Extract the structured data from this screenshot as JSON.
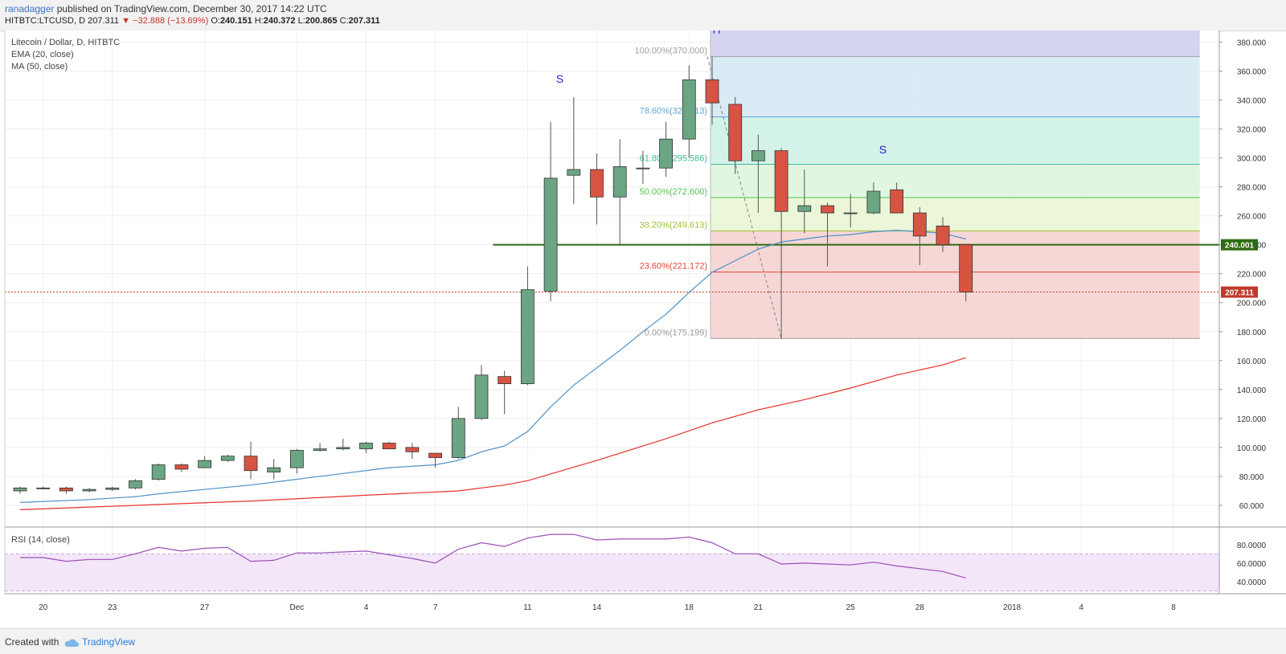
{
  "header": {
    "user": "ranadagger",
    "published_text": "published on TradingView.com, December 30, 2017 14:22 UTC",
    "symbol_line": "HITBTC:LTCUSD, D",
    "last_price": "207.311",
    "change": "▼ −32.888 (−13.69%)",
    "open_label": "O:",
    "open": "240.151",
    "high_label": "H:",
    "high": "240.372",
    "low_label": "L:",
    "low": "200.865",
    "close_label": "C:",
    "close": "207.311"
  },
  "legend": {
    "title": "Litecoin / Dollar, D, HITBTC",
    "ema": "EMA (20, close)",
    "ma": "MA (50, close)",
    "rsi": "RSI (14, close)"
  },
  "footer": {
    "created_with": "Created with",
    "brand": "TradingView"
  },
  "colors": {
    "up": "#6ba583",
    "down": "#d75442",
    "ema": "#4a90c8",
    "ma": "#e8312a",
    "rsi": "#9b4fb5",
    "support": "#2f6b10",
    "price_line": "#c0392b"
  },
  "chart_data": {
    "type": "candlestick",
    "ylim": [
      45,
      388
    ],
    "y_ticks": [
      "60.000",
      "80.000",
      "100.000",
      "120.000",
      "140.000",
      "160.000",
      "180.000",
      "200.000",
      "220.000",
      "240.000",
      "260.000",
      "280.000",
      "300.000",
      "320.000",
      "340.000",
      "360.000",
      "380.000"
    ],
    "x_labels": [
      {
        "i": 1,
        "label": "20"
      },
      {
        "i": 4,
        "label": "23"
      },
      {
        "i": 8,
        "label": "27"
      },
      {
        "i": 12,
        "label": "Dec"
      },
      {
        "i": 15,
        "label": "4"
      },
      {
        "i": 18,
        "label": "7"
      },
      {
        "i": 22,
        "label": "11"
      },
      {
        "i": 25,
        "label": "14"
      },
      {
        "i": 29,
        "label": "18"
      },
      {
        "i": 32,
        "label": "21"
      },
      {
        "i": 36,
        "label": "25"
      },
      {
        "i": 39,
        "label": "28"
      },
      {
        "i": 43,
        "label": "2018"
      },
      {
        "i": 46,
        "label": "4"
      },
      {
        "i": 50,
        "label": "8"
      }
    ],
    "candles": [
      [
        0,
        70,
        73,
        68,
        72
      ],
      [
        1,
        72,
        73,
        71,
        72
      ],
      [
        2,
        72,
        73,
        68,
        70
      ],
      [
        3,
        70,
        72,
        69,
        71
      ],
      [
        4,
        71,
        73,
        70,
        72
      ],
      [
        5,
        72,
        78,
        71,
        77
      ],
      [
        6,
        78,
        89,
        77,
        88
      ],
      [
        7,
        88,
        89,
        83,
        85
      ],
      [
        8,
        86,
        94,
        86,
        91
      ],
      [
        9,
        91,
        95,
        90,
        94
      ],
      [
        10,
        94,
        104,
        78,
        84
      ],
      [
        11,
        83,
        92,
        78,
        86
      ],
      [
        12,
        86,
        99,
        82,
        98
      ],
      [
        13,
        98,
        103,
        97,
        99
      ],
      [
        14,
        99,
        106,
        98,
        100
      ],
      [
        15,
        99,
        104,
        96,
        103
      ],
      [
        16,
        103,
        104,
        99,
        99
      ],
      [
        17,
        100,
        103,
        92,
        97
      ],
      [
        18,
        96,
        96,
        86,
        93
      ],
      [
        19,
        93,
        128,
        92,
        120
      ],
      [
        20,
        120,
        157,
        119,
        150
      ],
      [
        21,
        149,
        153,
        123,
        144
      ],
      [
        22,
        144,
        225,
        143,
        209
      ],
      [
        23,
        208,
        325,
        201,
        286
      ],
      [
        24,
        288,
        342,
        268,
        292
      ],
      [
        25,
        292,
        303,
        254,
        273
      ],
      [
        26,
        273,
        313,
        240,
        294
      ],
      [
        27,
        293,
        305,
        282,
        293
      ],
      [
        28,
        293,
        325,
        287,
        313
      ],
      [
        29,
        313,
        364,
        300,
        354
      ],
      [
        30,
        354,
        370,
        323,
        338
      ],
      [
        31,
        337,
        342,
        289,
        298
      ],
      [
        32,
        298,
        316,
        262,
        305
      ],
      [
        33,
        305,
        307,
        175.2,
        263
      ],
      [
        34,
        263,
        292,
        248,
        267
      ],
      [
        35,
        267,
        269,
        225,
        262
      ],
      [
        36,
        262,
        275,
        252,
        262
      ],
      [
        37,
        262,
        283,
        261,
        277
      ],
      [
        38,
        278,
        283,
        264,
        262
      ],
      [
        39,
        262,
        266,
        226,
        246
      ],
      [
        40,
        253,
        259,
        235,
        240
      ],
      [
        41,
        240.151,
        240.372,
        200.865,
        207.311
      ]
    ],
    "ema20": [
      [
        0,
        62
      ],
      [
        3,
        64
      ],
      [
        5,
        66
      ],
      [
        6,
        68
      ],
      [
        8,
        71
      ],
      [
        10,
        74
      ],
      [
        12,
        78
      ],
      [
        14,
        82
      ],
      [
        16,
        86
      ],
      [
        18,
        88
      ],
      [
        19,
        91
      ],
      [
        20,
        97
      ],
      [
        21,
        101
      ],
      [
        22,
        111
      ],
      [
        23,
        128
      ],
      [
        24,
        143
      ],
      [
        25,
        155
      ],
      [
        26,
        167
      ],
      [
        27,
        180
      ],
      [
        28,
        192
      ],
      [
        29,
        207
      ],
      [
        30,
        221
      ],
      [
        31,
        229
      ],
      [
        32,
        237
      ],
      [
        33,
        242
      ],
      [
        34,
        244
      ],
      [
        35,
        246
      ],
      [
        36,
        247
      ],
      [
        37,
        249
      ],
      [
        38,
        250
      ],
      [
        39,
        249
      ],
      [
        40,
        248
      ],
      [
        41,
        244
      ]
    ],
    "ma50": [
      [
        0,
        57
      ],
      [
        5,
        60
      ],
      [
        10,
        63
      ],
      [
        15,
        67
      ],
      [
        19,
        70
      ],
      [
        21,
        74
      ],
      [
        22,
        77
      ],
      [
        25,
        91
      ],
      [
        28,
        106
      ],
      [
        30,
        117
      ],
      [
        32,
        126
      ],
      [
        34,
        133
      ],
      [
        36,
        141
      ],
      [
        38,
        150
      ],
      [
        40,
        157
      ],
      [
        41,
        162
      ]
    ],
    "rsi": {
      "ylim": [
        27,
        98
      ],
      "ticks": [
        "40.0000",
        "60.0000",
        "80.0000"
      ],
      "band": [
        30,
        70
      ],
      "values": [
        [
          0,
          66
        ],
        [
          1,
          66
        ],
        [
          2,
          62
        ],
        [
          3,
          64
        ],
        [
          4,
          64
        ],
        [
          5,
          70
        ],
        [
          6,
          77
        ],
        [
          7,
          73
        ],
        [
          8,
          76
        ],
        [
          9,
          77
        ],
        [
          10,
          62
        ],
        [
          11,
          63
        ],
        [
          12,
          71
        ],
        [
          13,
          71
        ],
        [
          14,
          72
        ],
        [
          15,
          73
        ],
        [
          16,
          69
        ],
        [
          17,
          65
        ],
        [
          18,
          60
        ],
        [
          19,
          75
        ],
        [
          20,
          82
        ],
        [
          21,
          78
        ],
        [
          22,
          87
        ],
        [
          23,
          91
        ],
        [
          24,
          91
        ],
        [
          25,
          85
        ],
        [
          26,
          86
        ],
        [
          27,
          86
        ],
        [
          28,
          86
        ],
        [
          29,
          88
        ],
        [
          30,
          82
        ],
        [
          31,
          70
        ],
        [
          32,
          70
        ],
        [
          33,
          59
        ],
        [
          34,
          60
        ],
        [
          35,
          59
        ],
        [
          36,
          58
        ],
        [
          37,
          61
        ],
        [
          38,
          57
        ],
        [
          39,
          54
        ],
        [
          40,
          51
        ],
        [
          41,
          44
        ]
      ]
    },
    "fibonacci": {
      "levels": [
        {
          "label": "100.00%(370.000)",
          "value": 370.0,
          "color": "#9e9e9e",
          "fill": "#dddddd"
        },
        {
          "label": "78.60%(328.313)",
          "value": 328.313,
          "color": "#5ba6d6",
          "fill": "#d3e7f5"
        },
        {
          "label": "61.80%(295.586)",
          "value": 295.586,
          "color": "#3dbe9c",
          "fill": "#cdf1e4"
        },
        {
          "label": "50.00%(272.600)",
          "value": 272.6,
          "color": "#52c552",
          "fill": "#dcf5dc"
        },
        {
          "label": "38.20%(249.613)",
          "value": 249.613,
          "color": "#9cc42e",
          "fill": "#e9f5d2"
        },
        {
          "label": "23.60%(221.172)",
          "value": 221.172,
          "color": "#e0443b",
          "fill": "#f5d0cf"
        },
        {
          "label": "0.00%(175.199)",
          "value": 175.199,
          "color": "#9e9e9e",
          "fill": null
        }
      ],
      "start_index": 30,
      "end_index": 51,
      "top_band": {
        "from": 370,
        "to": 388,
        "color": "#cfcff0"
      }
    },
    "support": {
      "value": 240.001,
      "label": "240.001",
      "from_index": 20.5
    },
    "last_price": {
      "value": 207.311,
      "label": "207.311"
    },
    "annotations": [
      {
        "text": "S",
        "index": 23.4,
        "value": 352
      },
      {
        "text": "H",
        "index": 30.2,
        "value": 386
      },
      {
        "text": "S",
        "index": 37.4,
        "value": 303
      }
    ]
  }
}
